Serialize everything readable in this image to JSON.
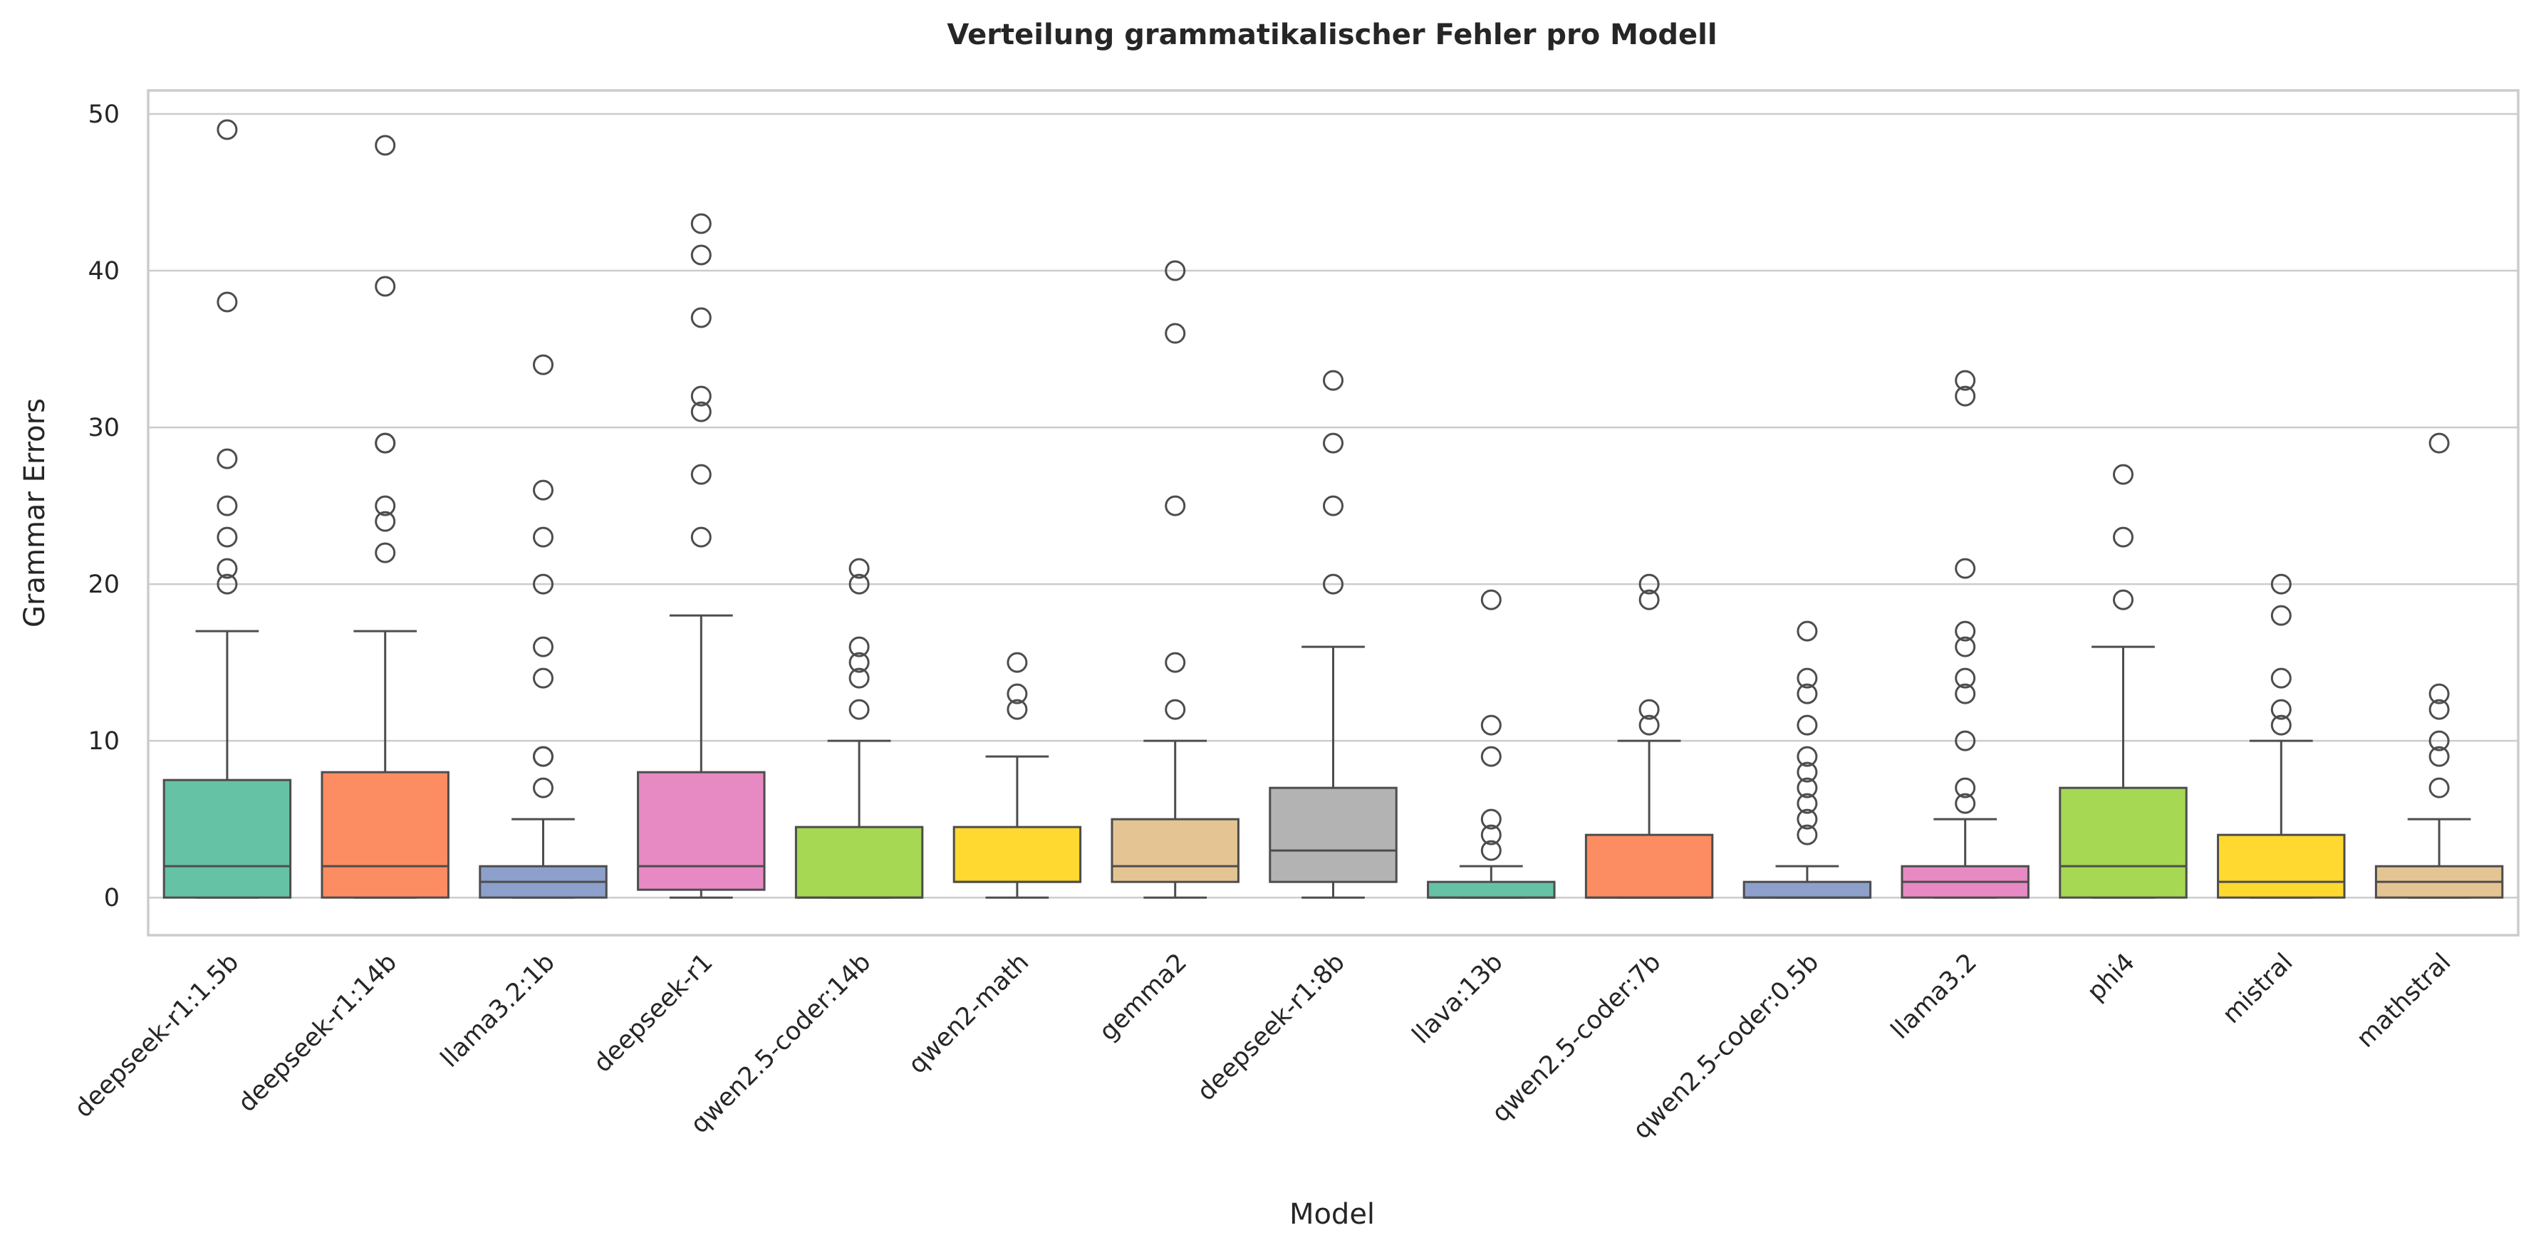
{
  "chart_data": {
    "type": "box",
    "title": "Verteilung grammatikalischer Fehler pro Modell",
    "xlabel": "Model",
    "ylabel": "Grammar Errors",
    "ylim": [
      -2.4,
      51.5
    ],
    "yticks": [
      0,
      10,
      20,
      30,
      40,
      50
    ],
    "grid": "horizontal",
    "categories": [
      "deepseek-r1:1.5b",
      "deepseek-r1:14b",
      "llama3.2:1b",
      "deepseek-r1",
      "qwen2.5-coder:14b",
      "qwen2-math",
      "gemma2",
      "deepseek-r1:8b",
      "llava:13b",
      "qwen2.5-coder:7b",
      "qwen2.5-coder:0.5b",
      "llama3.2",
      "phi4",
      "mistral",
      "mathstral"
    ],
    "series": [
      {
        "category": "deepseek-r1:1.5b",
        "color": "#66c2a5",
        "whisker_low": 0,
        "q1": 0,
        "median": 2,
        "q3": 7.5,
        "whisker_high": 17,
        "fliers": [
          20,
          21,
          23,
          25,
          28,
          38,
          49
        ]
      },
      {
        "category": "deepseek-r1:14b",
        "color": "#fc8d62",
        "whisker_low": 0,
        "q1": 0,
        "median": 2,
        "q3": 8,
        "whisker_high": 17,
        "fliers": [
          22,
          24,
          25,
          29,
          29,
          39,
          48
        ]
      },
      {
        "category": "llama3.2:1b",
        "color": "#8da0cb",
        "whisker_low": 0,
        "q1": 0,
        "median": 1,
        "q3": 2,
        "whisker_high": 5,
        "fliers": [
          7,
          9,
          9,
          14,
          16,
          20,
          23,
          26,
          34
        ]
      },
      {
        "category": "deepseek-r1",
        "color": "#e78ac3",
        "whisker_low": 0,
        "q1": 0.5,
        "median": 2,
        "q3": 8,
        "whisker_high": 18,
        "fliers": [
          23,
          27,
          31,
          32,
          37,
          41,
          43
        ]
      },
      {
        "category": "qwen2.5-coder:14b",
        "color": "#a6d854",
        "whisker_low": 0,
        "q1": 0,
        "median": 0,
        "q3": 4.5,
        "whisker_high": 10,
        "fliers": [
          12,
          14,
          15,
          16,
          20,
          21
        ]
      },
      {
        "category": "qwen2-math",
        "color": "#ffd92f",
        "whisker_low": 0,
        "q1": 1,
        "median": 1,
        "q3": 4.5,
        "whisker_high": 9,
        "fliers": [
          12,
          13,
          15
        ]
      },
      {
        "category": "gemma2",
        "color": "#e5c494",
        "whisker_low": 0,
        "q1": 1,
        "median": 2,
        "q3": 5,
        "whisker_high": 10,
        "fliers": [
          12,
          15,
          25,
          36,
          40
        ]
      },
      {
        "category": "deepseek-r1:8b",
        "color": "#b3b3b3",
        "whisker_low": 0,
        "q1": 1,
        "median": 3,
        "q3": 7,
        "whisker_high": 16,
        "fliers": [
          20,
          25,
          29,
          33
        ]
      },
      {
        "category": "llava:13b",
        "color": "#66c2a5",
        "whisker_low": 0,
        "q1": 0,
        "median": 0,
        "q3": 1,
        "whisker_high": 2,
        "fliers": [
          3,
          4,
          5,
          9,
          11,
          19
        ]
      },
      {
        "category": "qwen2.5-coder:7b",
        "color": "#fc8d62",
        "whisker_low": 0,
        "q1": 0,
        "median": 0,
        "q3": 4,
        "whisker_high": 10,
        "fliers": [
          11,
          12,
          19,
          20
        ]
      },
      {
        "category": "qwen2.5-coder:0.5b",
        "color": "#8da0cb",
        "whisker_low": 0,
        "q1": 0,
        "median": 0,
        "q3": 1,
        "whisker_high": 2,
        "fliers": [
          4,
          5,
          6,
          7,
          8,
          9,
          11,
          13,
          14,
          17
        ]
      },
      {
        "category": "llama3.2",
        "color": "#e78ac3",
        "whisker_low": 0,
        "q1": 0,
        "median": 1,
        "q3": 2,
        "whisker_high": 5,
        "fliers": [
          6,
          7,
          10,
          13,
          14,
          16,
          17,
          21,
          32,
          33
        ]
      },
      {
        "category": "phi4",
        "color": "#a6d854",
        "whisker_low": 0,
        "q1": 0,
        "median": 2,
        "q3": 7,
        "whisker_high": 16,
        "fliers": [
          19,
          23,
          27
        ]
      },
      {
        "category": "mistral",
        "color": "#ffd92f",
        "whisker_low": 0,
        "q1": 0,
        "median": 1,
        "q3": 4,
        "whisker_high": 10,
        "fliers": [
          11,
          12,
          14,
          18,
          20
        ]
      },
      {
        "category": "mathstral",
        "color": "#e5c494",
        "whisker_low": 0,
        "q1": 0,
        "median": 1,
        "q3": 2,
        "whisker_high": 5,
        "fliers": [
          7,
          9,
          10,
          12,
          13,
          29
        ]
      }
    ]
  }
}
